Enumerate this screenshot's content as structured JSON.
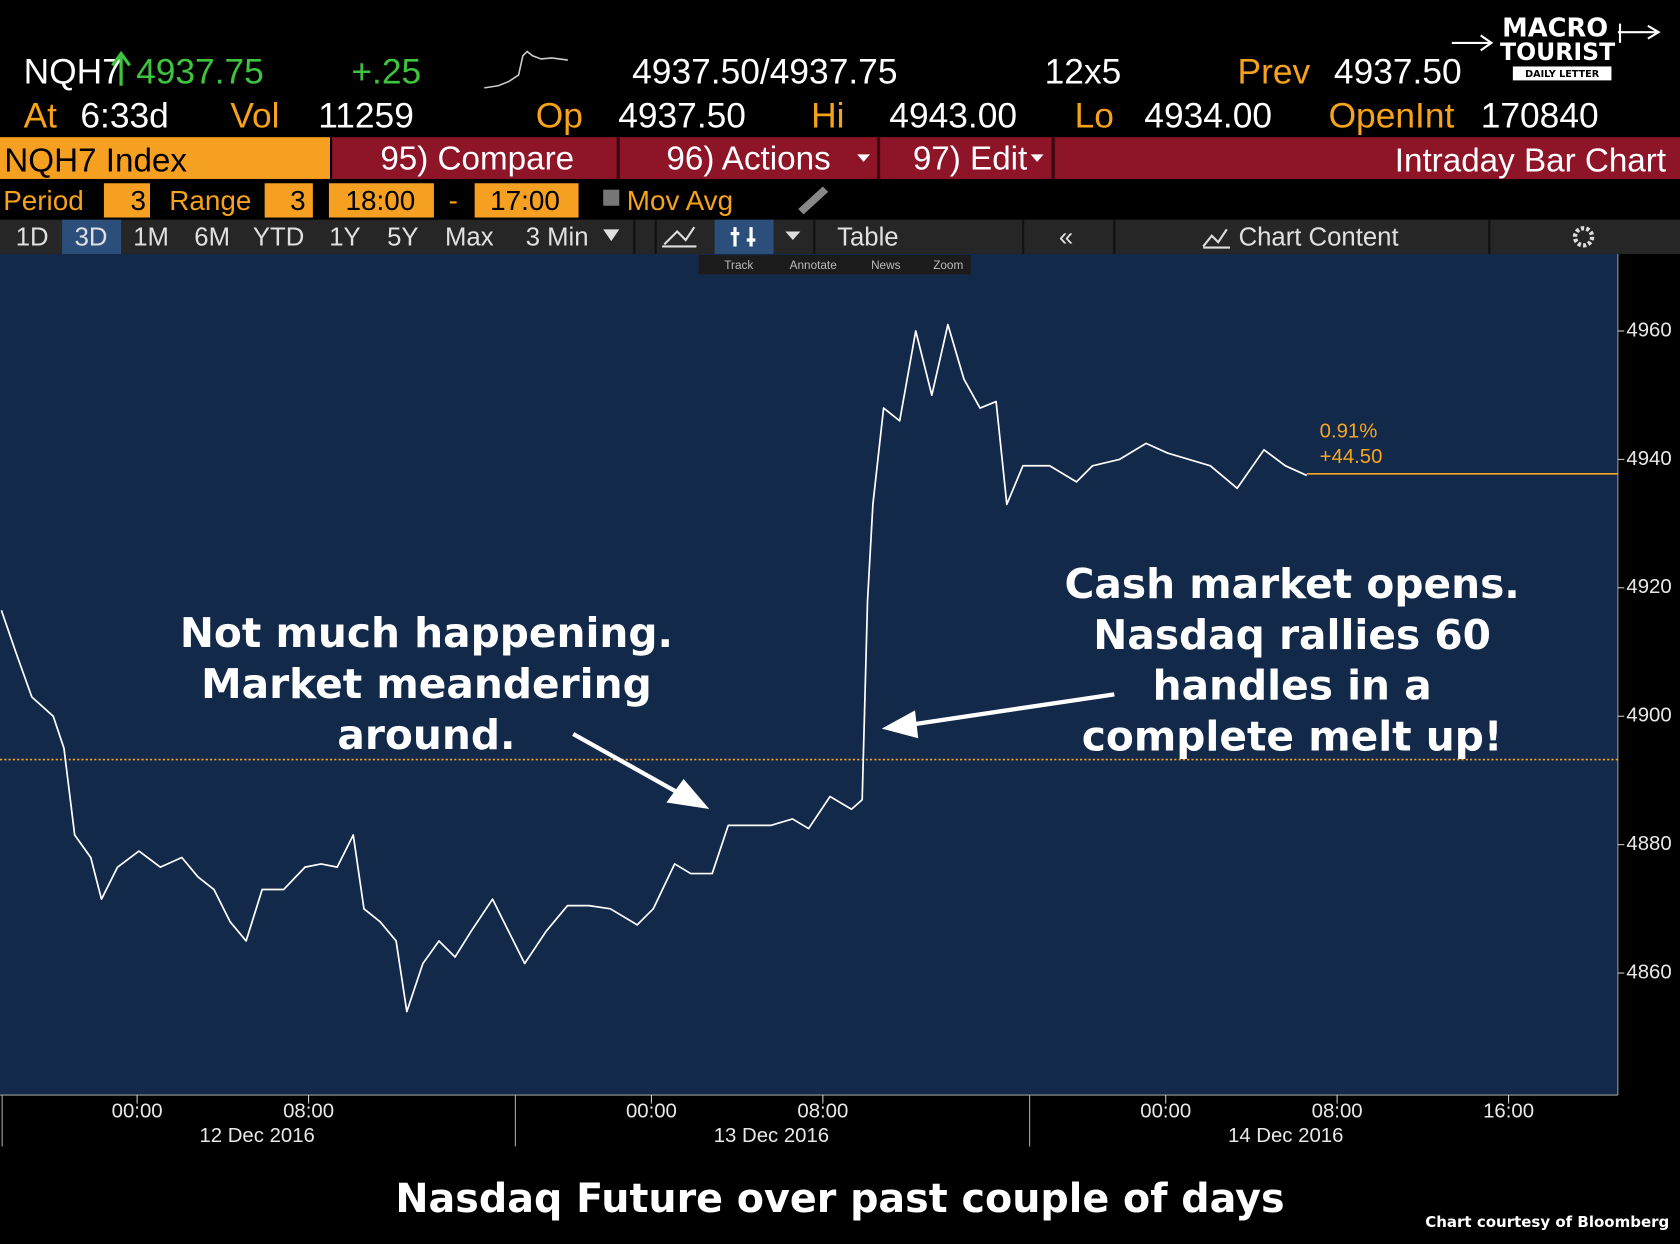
{
  "header": {
    "ticker": "NQH7",
    "last": "4937.75",
    "change": "+.25",
    "bid_ask": "4937.50/4937.75",
    "size": "12x5",
    "prev_label": "Prev",
    "prev": "4937.50",
    "at_label": "At",
    "time": "6:33d",
    "vol_label": "Vol",
    "vol": "11259",
    "op_label": "Op",
    "op": "4937.50",
    "hi_label": "Hi",
    "hi": "4943.00",
    "lo_label": "Lo",
    "lo": "4934.00",
    "openint_label": "OpenInt",
    "openint": "170840"
  },
  "logo": {
    "line1": "MACRO",
    "line2": "TOURIST",
    "line3": "DAILY LETTER"
  },
  "menu": {
    "security": "NQH7 Index",
    "compare": "95) Compare",
    "actions": "96) Actions",
    "edit": "97) Edit",
    "title": "Intraday Bar Chart"
  },
  "settings": {
    "period_label": "Period",
    "period": "3",
    "range_label": "Range",
    "range": "3",
    "start": "18:00",
    "dash": "-",
    "end": "17:00",
    "mov_avg": "Mov Avg"
  },
  "toolbar": {
    "tabs": [
      "1D",
      "3D",
      "1M",
      "6M",
      "YTD",
      "1Y",
      "5Y",
      "Max"
    ],
    "interval": "3 Min",
    "table": "Table",
    "chart_content": "Chart Content",
    "tools": [
      "Track",
      "Annotate",
      "News",
      "Zoom"
    ]
  },
  "chart_data": {
    "type": "line",
    "title": "Nasdaq Future over past couple of days",
    "source": "Chart courtesy of Bloomberg",
    "color": "#ffffff",
    "grid": false,
    "x": [
      "2016-12-11T17:40",
      "2016-12-11T18:20",
      "2016-12-11T19:05",
      "2016-12-11T20:05",
      "2016-12-11T20:35",
      "2016-12-11T21:05",
      "2016-12-11T21:50",
      "2016-12-11T22:20",
      "2016-12-11T23:05",
      "2016-12-12T00:05",
      "2016-12-12T01:05",
      "2016-12-12T02:05",
      "2016-12-12T02:50",
      "2016-12-12T03:35",
      "2016-12-12T04:20",
      "2016-12-12T05:05",
      "2016-12-12T05:50",
      "2016-12-12T06:50",
      "2016-12-12T07:50",
      "2016-12-12T08:35",
      "2016-12-12T09:20",
      "2016-12-12T10:05",
      "2016-12-12T10:35",
      "2016-12-12T11:20",
      "2016-12-12T12:05",
      "2016-12-12T12:35",
      "2016-12-12T13:20",
      "2016-12-12T14:05",
      "2016-12-12T14:50",
      "2016-12-12T15:35",
      "2016-12-12T16:35",
      "2016-12-12T17:20",
      "2016-12-12T18:05",
      "2016-12-12T19:05",
      "2016-12-12T20:05",
      "2016-12-12T21:05",
      "2016-12-12T22:05",
      "2016-12-12T23:20",
      "2016-12-13T00:05",
      "2016-12-13T01:05",
      "2016-12-13T01:50",
      "2016-12-13T02:50",
      "2016-12-13T03:35",
      "2016-12-13T04:35",
      "2016-12-13T05:35",
      "2016-12-13T06:35",
      "2016-12-13T07:20",
      "2016-12-13T08:20",
      "2016-12-13T09:20",
      "2016-12-13T09:50",
      "2016-12-13T10:05",
      "2016-12-13T10:20",
      "2016-12-13T10:50",
      "2016-12-13T11:35",
      "2016-12-13T12:20",
      "2016-12-13T13:05",
      "2016-12-13T13:50",
      "2016-12-13T14:35",
      "2016-12-13T15:20",
      "2016-12-13T16:05",
      "2016-12-13T16:35",
      "2016-12-13T17:20",
      "2016-12-13T18:35",
      "2016-12-13T19:50",
      "2016-12-13T20:35",
      "2016-12-13T21:50",
      "2016-12-13T23:05",
      "2016-12-14T00:05",
      "2016-12-14T01:05",
      "2016-12-14T02:05",
      "2016-12-14T03:20",
      "2016-12-14T04:35",
      "2016-12-14T05:35",
      "2016-12-14T06:35"
    ],
    "values": [
      4916.5,
      4910,
      4903,
      4900,
      4895,
      4881.5,
      4878,
      4871.5,
      4876.5,
      4879,
      4876.5,
      4878,
      4875,
      4873,
      4868,
      4865,
      4873,
      4873,
      4876.5,
      4877,
      4876.5,
      4881.5,
      4870,
      4868,
      4865,
      4854,
      4861.5,
      4865,
      4862.5,
      4866.5,
      4871.5,
      4866.5,
      4861.5,
      4866.5,
      4870.5,
      4870.5,
      4870,
      4867.5,
      4870,
      4877,
      4875.5,
      4875.5,
      4883,
      4883,
      4883,
      4884,
      4882.5,
      4887.5,
      4885.5,
      4887,
      4918,
      4933,
      4948,
      4946,
      4960,
      4950,
      4961,
      4952.5,
      4948,
      4949,
      4933,
      4939,
      4939,
      4936.5,
      4939,
      4940,
      4942.5,
      4941,
      4940,
      4939,
      4935.5,
      4941.5,
      4939,
      4937.5
    ],
    "xlim": [
      "2016-12-11T17:36",
      "2016-12-14T21:06"
    ],
    "xticks": [
      {
        "value": "2016-12-12T00:00",
        "label": "00:00"
      },
      {
        "value": "2016-12-12T08:00",
        "label": "08:00"
      },
      {
        "value": "2016-12-13T00:00",
        "label": "00:00"
      },
      {
        "value": "2016-12-13T08:00",
        "label": "08:00"
      },
      {
        "value": "2016-12-14T00:00",
        "label": "00:00"
      },
      {
        "value": "2016-12-14T08:00",
        "label": "08:00"
      },
      {
        "value": "2016-12-14T16:00",
        "label": "16:00"
      }
    ],
    "date_labels": [
      {
        "value": "2016-12-12T05:36",
        "label": "12 Dec 2016"
      },
      {
        "value": "2016-12-13T05:36",
        "label": "13 Dec 2016"
      },
      {
        "value": "2016-12-14T05:36",
        "label": "14 Dec 2016"
      }
    ],
    "day_breaks": [
      "2016-12-11T17:42",
      "2016-12-12T17:39",
      "2016-12-13T17:39"
    ],
    "ylim": [
      4841,
      4972
    ],
    "yticks": [
      4860,
      4880,
      4900,
      4920,
      4940,
      4960
    ],
    "reference_lines": [
      {
        "value": 4937.75,
        "color": "#f5a623",
        "style": "solid",
        "labels": [
          "0.91%",
          "+44.50"
        ]
      },
      {
        "value": 4893.25,
        "color": "#f5a623",
        "style": "dotted"
      }
    ],
    "annotations": [
      {
        "lines": [
          "Not much happening.",
          "Market meandering",
          "around."
        ]
      },
      {
        "lines": [
          "Cash market opens.",
          "Nasdaq rallies 60",
          "handles in a",
          "complete melt up!"
        ]
      }
    ]
  }
}
